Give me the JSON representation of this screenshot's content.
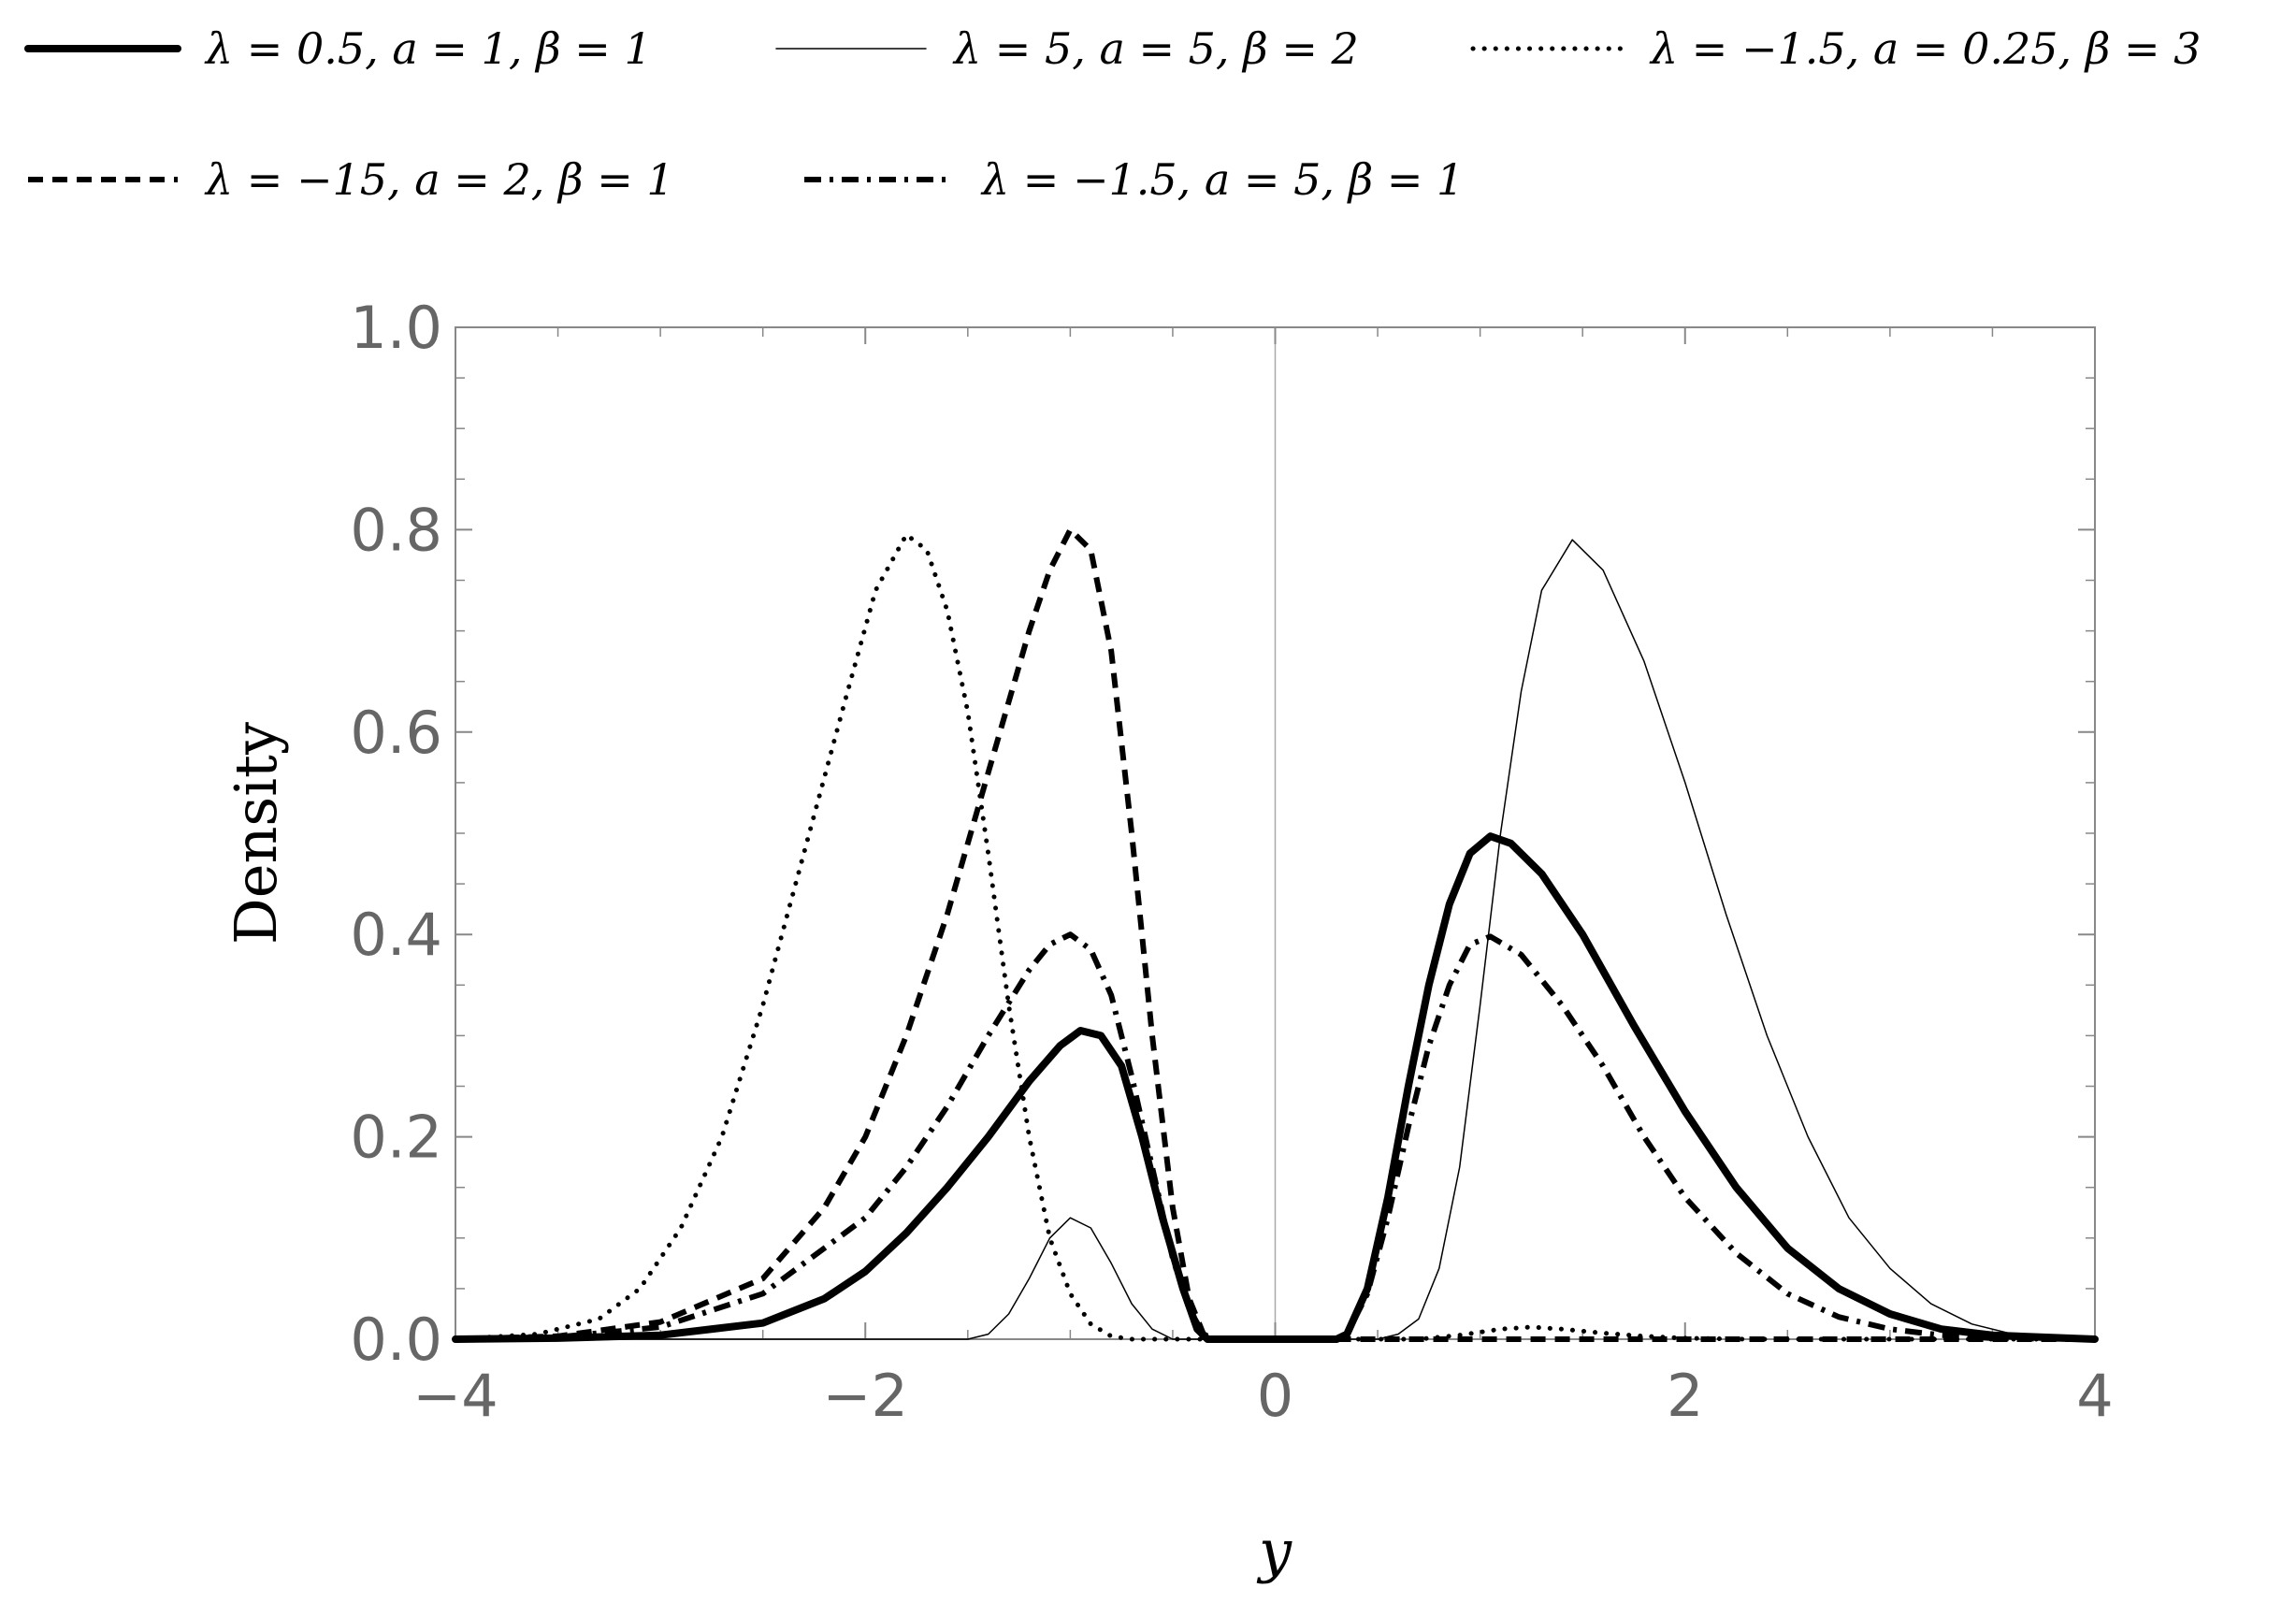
{
  "chart_data": {
    "type": "line",
    "title": "",
    "xlabel": "y",
    "ylabel": "Density",
    "xlim": [
      -4,
      4
    ],
    "ylim": [
      0,
      1
    ],
    "xticks": [
      -4,
      -2,
      0,
      2,
      4
    ],
    "xtick_labels": [
      "−4",
      "−2",
      "0",
      "2",
      "4"
    ],
    "yticks": [
      0,
      0.2,
      0.4,
      0.6,
      0.8,
      1.0
    ],
    "ytick_labels": [
      "0.0",
      "0.2",
      "0.4",
      "0.6",
      "0.8",
      "1.0"
    ],
    "grid": false,
    "legend_position": "top",
    "vertical_reference_line_x": 0,
    "series": [
      {
        "name": "λ = 0.5, a = 1, β = 1",
        "style": "solid-thick",
        "points": [
          [
            -4,
            0
          ],
          [
            -3.5,
            0.001
          ],
          [
            -3,
            0.004
          ],
          [
            -2.5,
            0.016
          ],
          [
            -2.2,
            0.04
          ],
          [
            -2,
            0.067
          ],
          [
            -1.8,
            0.105
          ],
          [
            -1.6,
            0.15
          ],
          [
            -1.4,
            0.2
          ],
          [
            -1.2,
            0.255
          ],
          [
            -1.05,
            0.29
          ],
          [
            -0.95,
            0.305
          ],
          [
            -0.85,
            0.3
          ],
          [
            -0.75,
            0.27
          ],
          [
            -0.65,
            0.2
          ],
          [
            -0.55,
            0.12
          ],
          [
            -0.45,
            0.05
          ],
          [
            -0.38,
            0.01
          ],
          [
            -0.33,
            0
          ],
          [
            0,
            0
          ],
          [
            0.3,
            0
          ],
          [
            0.35,
            0.005
          ],
          [
            0.45,
            0.05
          ],
          [
            0.55,
            0.14
          ],
          [
            0.65,
            0.25
          ],
          [
            0.75,
            0.35
          ],
          [
            0.85,
            0.43
          ],
          [
            0.95,
            0.48
          ],
          [
            1.05,
            0.497
          ],
          [
            1.15,
            0.49
          ],
          [
            1.3,
            0.46
          ],
          [
            1.5,
            0.4
          ],
          [
            1.75,
            0.31
          ],
          [
            2,
            0.225
          ],
          [
            2.25,
            0.15
          ],
          [
            2.5,
            0.09
          ],
          [
            2.75,
            0.05
          ],
          [
            3,
            0.025
          ],
          [
            3.25,
            0.01
          ],
          [
            3.5,
            0.004
          ],
          [
            4,
            0
          ]
        ]
      },
      {
        "name": "λ = 5, a = 5, β = 2",
        "style": "solid-thin",
        "points": [
          [
            -4,
            0
          ],
          [
            -1.5,
            0
          ],
          [
            -1.4,
            0.005
          ],
          [
            -1.3,
            0.025
          ],
          [
            -1.2,
            0.06
          ],
          [
            -1.1,
            0.1
          ],
          [
            -1,
            0.12
          ],
          [
            -0.9,
            0.11
          ],
          [
            -0.8,
            0.075
          ],
          [
            -0.7,
            0.035
          ],
          [
            -0.6,
            0.01
          ],
          [
            -0.5,
            0
          ],
          [
            0,
            0
          ],
          [
            0.5,
            0
          ],
          [
            0.6,
            0.005
          ],
          [
            0.7,
            0.02
          ],
          [
            0.8,
            0.07
          ],
          [
            0.9,
            0.17
          ],
          [
            1,
            0.33
          ],
          [
            1.1,
            0.5
          ],
          [
            1.2,
            0.64
          ],
          [
            1.3,
            0.74
          ],
          [
            1.45,
            0.79
          ],
          [
            1.6,
            0.76
          ],
          [
            1.8,
            0.67
          ],
          [
            2,
            0.55
          ],
          [
            2.2,
            0.42
          ],
          [
            2.4,
            0.3
          ],
          [
            2.6,
            0.2
          ],
          [
            2.8,
            0.12
          ],
          [
            3,
            0.07
          ],
          [
            3.2,
            0.035
          ],
          [
            3.4,
            0.015
          ],
          [
            3.6,
            0.005
          ],
          [
            4,
            0
          ]
        ]
      },
      {
        "name": "λ = −1.5, a = 0.25, β = 3",
        "style": "dotted",
        "points": [
          [
            -4,
            0
          ],
          [
            -3.6,
            0.005
          ],
          [
            -3.3,
            0.02
          ],
          [
            -3.1,
            0.05
          ],
          [
            -2.9,
            0.11
          ],
          [
            -2.7,
            0.2
          ],
          [
            -2.5,
            0.33
          ],
          [
            -2.3,
            0.48
          ],
          [
            -2.1,
            0.63
          ],
          [
            -1.95,
            0.74
          ],
          [
            -1.8,
            0.795
          ],
          [
            -1.7,
            0.78
          ],
          [
            -1.6,
            0.72
          ],
          [
            -1.5,
            0.62
          ],
          [
            -1.4,
            0.48
          ],
          [
            -1.3,
            0.33
          ],
          [
            -1.2,
            0.2
          ],
          [
            -1.1,
            0.1
          ],
          [
            -1,
            0.045
          ],
          [
            -0.9,
            0.015
          ],
          [
            -0.8,
            0.003
          ],
          [
            -0.7,
            0
          ],
          [
            0,
            0
          ],
          [
            0.7,
            0
          ],
          [
            0.9,
            0.004
          ],
          [
            1.1,
            0.01
          ],
          [
            1.25,
            0.012
          ],
          [
            1.4,
            0.01
          ],
          [
            1.6,
            0.006
          ],
          [
            1.8,
            0.003
          ],
          [
            2,
            0.001
          ],
          [
            2.3,
            0
          ],
          [
            4,
            0
          ]
        ]
      },
      {
        "name": "λ = −15, a = 2, β = 1",
        "style": "dashed",
        "points": [
          [
            -4,
            0
          ],
          [
            -3.5,
            0.003
          ],
          [
            -3,
            0.017
          ],
          [
            -2.5,
            0.06
          ],
          [
            -2.2,
            0.13
          ],
          [
            -2,
            0.2
          ],
          [
            -1.8,
            0.3
          ],
          [
            -1.6,
            0.42
          ],
          [
            -1.4,
            0.56
          ],
          [
            -1.2,
            0.7
          ],
          [
            -1.1,
            0.76
          ],
          [
            -1,
            0.8
          ],
          [
            -0.9,
            0.78
          ],
          [
            -0.8,
            0.68
          ],
          [
            -0.7,
            0.5
          ],
          [
            -0.6,
            0.3
          ],
          [
            -0.5,
            0.13
          ],
          [
            -0.42,
            0.04
          ],
          [
            -0.35,
            0.005
          ],
          [
            -0.3,
            0
          ],
          [
            4,
            0
          ]
        ]
      },
      {
        "name": "λ = −1.5, a = 5, β = 1",
        "style": "dash-dot",
        "points": [
          [
            -4,
            0
          ],
          [
            -3.5,
            0.002
          ],
          [
            -3,
            0.012
          ],
          [
            -2.5,
            0.045
          ],
          [
            -2,
            0.12
          ],
          [
            -1.8,
            0.17
          ],
          [
            -1.6,
            0.23
          ],
          [
            -1.4,
            0.3
          ],
          [
            -1.2,
            0.365
          ],
          [
            -1.1,
            0.39
          ],
          [
            -1,
            0.4
          ],
          [
            -0.9,
            0.385
          ],
          [
            -0.8,
            0.34
          ],
          [
            -0.7,
            0.26
          ],
          [
            -0.6,
            0.17
          ],
          [
            -0.5,
            0.08
          ],
          [
            -0.42,
            0.03
          ],
          [
            -0.35,
            0.005
          ],
          [
            -0.3,
            0
          ],
          [
            0,
            0
          ],
          [
            0.3,
            0
          ],
          [
            0.35,
            0.005
          ],
          [
            0.45,
            0.045
          ],
          [
            0.55,
            0.12
          ],
          [
            0.65,
            0.21
          ],
          [
            0.75,
            0.29
          ],
          [
            0.85,
            0.35
          ],
          [
            0.95,
            0.39
          ],
          [
            1.05,
            0.398
          ],
          [
            1.2,
            0.38
          ],
          [
            1.4,
            0.33
          ],
          [
            1.6,
            0.27
          ],
          [
            1.8,
            0.2
          ],
          [
            2,
            0.14
          ],
          [
            2.25,
            0.085
          ],
          [
            2.5,
            0.045
          ],
          [
            2.75,
            0.022
          ],
          [
            3,
            0.01
          ],
          [
            3.25,
            0.004
          ],
          [
            3.5,
            0.001
          ],
          [
            4,
            0
          ]
        ]
      }
    ]
  }
}
